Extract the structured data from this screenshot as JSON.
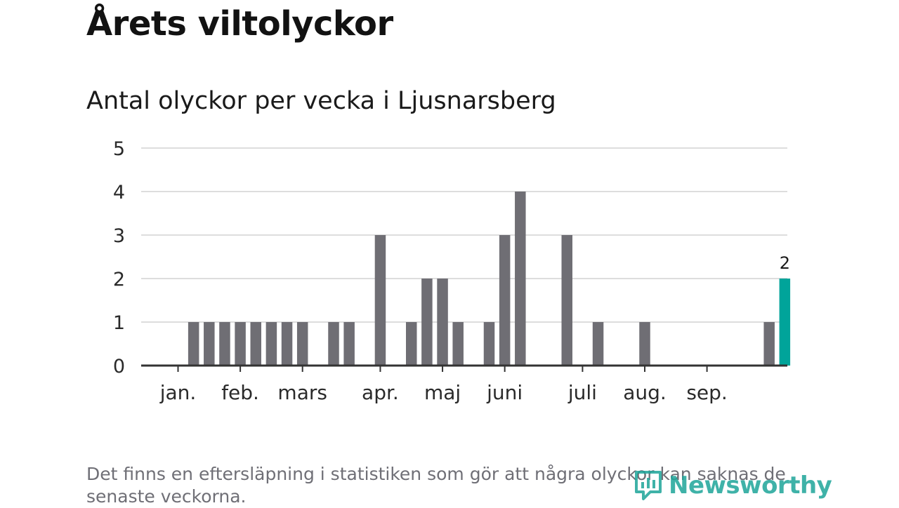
{
  "title": "Årets viltolyckor",
  "subtitle": "Antal olyckor per vecka i Ljusnarsberg",
  "footnote": "Det finns en eftersläpning i statistiken som gör att några olyckor kan saknas de senaste veckorna.",
  "brand": {
    "name": "Newsworthy",
    "icon": "newsworthy-logo-icon",
    "color": "#1ea59a"
  },
  "colors": {
    "bar": "#6f6e74",
    "highlight": "#00a49a",
    "grid": "#dddddd",
    "axis": "#333333"
  },
  "chart_data": {
    "type": "bar",
    "title": "Antal olyckor per vecka i Ljusnarsberg",
    "xlabel": "",
    "ylabel": "",
    "ylim": [
      0,
      5
    ],
    "yticks": [
      0,
      1,
      2,
      3,
      4,
      5
    ],
    "grid": true,
    "weeks": [
      1,
      2,
      3,
      4,
      5,
      6,
      7,
      8,
      9,
      10,
      11,
      12,
      13,
      14,
      15,
      16,
      17,
      18,
      19,
      20,
      21,
      22,
      23,
      24,
      25,
      26,
      27,
      28,
      29,
      30,
      31,
      32,
      33,
      34,
      35,
      36,
      37,
      38,
      39,
      40
    ],
    "values": [
      0,
      1,
      1,
      1,
      1,
      1,
      1,
      1,
      1,
      0,
      1,
      1,
      0,
      3,
      0,
      1,
      2,
      2,
      1,
      0,
      1,
      3,
      4,
      0,
      0,
      3,
      0,
      1,
      0,
      0,
      1,
      0,
      0,
      0,
      0,
      0,
      0,
      0,
      1,
      2
    ],
    "highlight_index": 39,
    "highlight_label": "2",
    "month_labels": [
      {
        "label": "jan.",
        "week": 1
      },
      {
        "label": "feb.",
        "week": 5
      },
      {
        "label": "mars",
        "week": 9
      },
      {
        "label": "apr.",
        "week": 14
      },
      {
        "label": "maj",
        "week": 18
      },
      {
        "label": "juni",
        "week": 22
      },
      {
        "label": "juli",
        "week": 27
      },
      {
        "label": "aug.",
        "week": 31
      },
      {
        "label": "sep.",
        "week": 35
      }
    ]
  }
}
